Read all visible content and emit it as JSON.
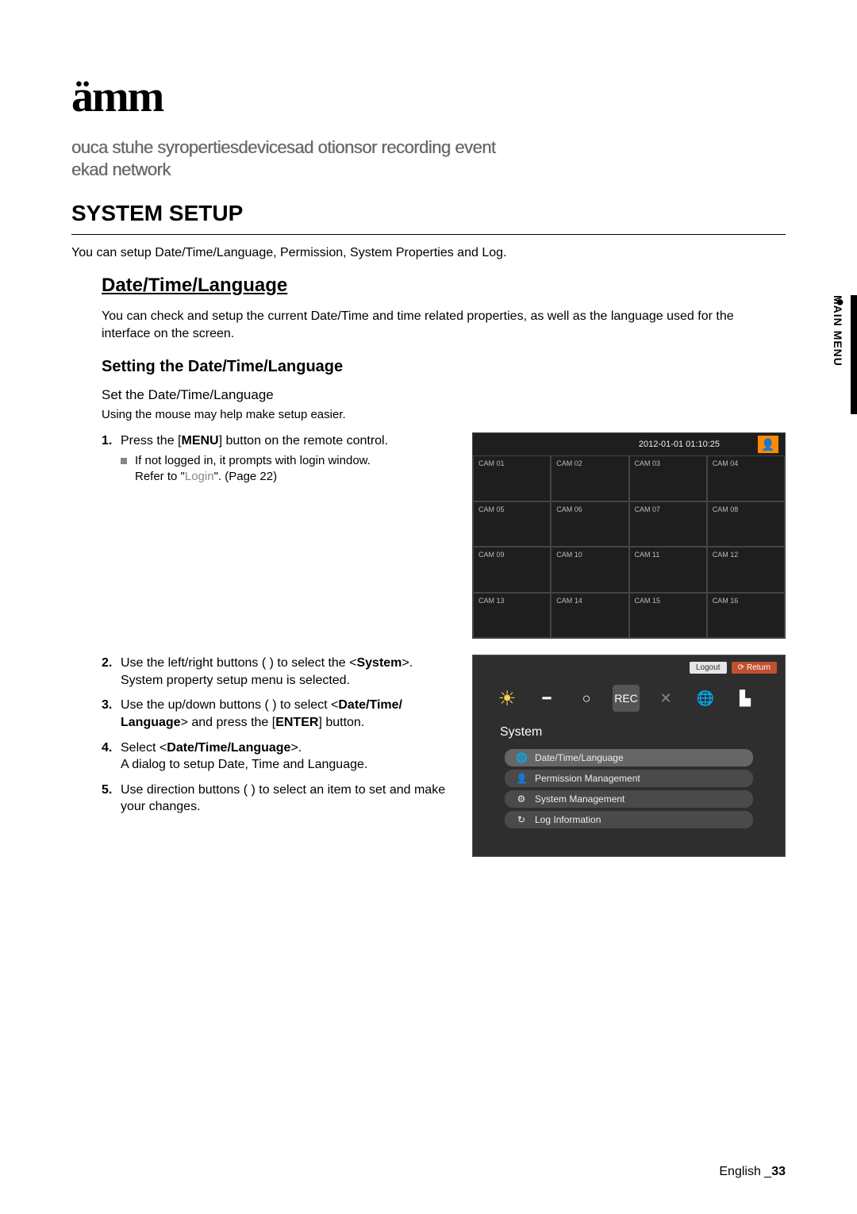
{
  "logo": "ämm",
  "intro_line1": "ouca stuhe syropertiesdevicesad otionsor recording event",
  "intro_line2": "ekad network",
  "h1": "SYSTEM SETUP",
  "system_desc": "You can setup Date/Time/Language, Permission, System Properties and Log.",
  "h2": "Date/Time/Language",
  "h2_desc": "You can check and setup the current Date/Time and time related properties, as well as the language used for the interface on the screen.",
  "h3": "Setting the Date/Time/Language",
  "h4": "Set the Date/Time/Language",
  "hint": "Using the mouse may help make setup easier.",
  "step1_a": "Press the [",
  "step1_b": "MENU",
  "step1_c": "] button on the remote control.",
  "step1_sub1": "If not logged in, it prompts with login window.",
  "step1_sub2a": "Refer to \"",
  "step1_sub2b": "Login",
  "step1_sub2c": "\". (Page 22)",
  "step2_a": "Use the left/right buttons (       ) to select the <",
  "step2_b": "System",
  "step2_c": ">.",
  "step2_d": "System property setup menu is selected.",
  "step3_a": "Use the up/down buttons (      ) to select <",
  "step3_b": "Date/Time/",
  "step3_c": "Language",
  "step3_d": "> and press the [",
  "step3_e": "ENTER",
  "step3_f": "] button.",
  "step4_a": "Select <",
  "step4_b": "Date/Time/Language",
  "step4_c": ">.",
  "step4_d": "A dialog to setup Date, Time and Language.",
  "step5_a": "Use direction buttons (            ) to select an item to set and make your changes.",
  "sidebar": "MAIN MENU",
  "shot1": {
    "date": "2012-01-01 01:10:25",
    "cams": [
      "CAM 01",
      "CAM 02",
      "CAM 03",
      "CAM 04",
      "CAM 05",
      "CAM 06",
      "CAM 07",
      "CAM 08",
      "CAM 09",
      "CAM 10",
      "CAM 11",
      "CAM 12",
      "CAM 13",
      "CAM 14",
      "CAM 15",
      "CAM 16"
    ]
  },
  "shot2": {
    "logout": "Logout",
    "return": "Return",
    "title": "System",
    "items": [
      "Date/Time/Language",
      "Permission Management",
      "System Management",
      "Log Information"
    ]
  },
  "footer_lang": "English _",
  "footer_page": "33"
}
